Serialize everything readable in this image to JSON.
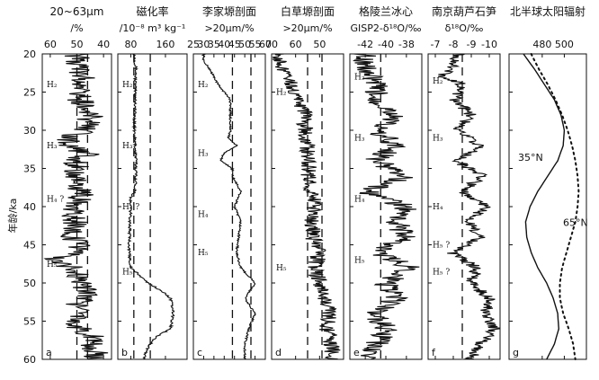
{
  "figure": {
    "y_axis_label": "年龄/ka",
    "y_tick_labels": [
      "20",
      "25",
      "30",
      "35",
      "40",
      "45",
      "50",
      "55",
      "60"
    ]
  },
  "chart_data": [
    {
      "type": "line",
      "panel": "a",
      "title": "20~63μm",
      "subtitle": "/%",
      "x_tick_labels": [
        "60",
        "50",
        "40"
      ],
      "xlim": [
        63,
        37
      ],
      "ylim": [
        20,
        60
      ],
      "series": [
        {
          "age_ka": [
            20,
            22,
            24,
            26,
            28,
            30,
            31,
            32,
            33,
            34,
            36,
            38,
            40,
            42,
            44,
            45,
            46,
            47,
            48,
            49,
            50,
            52,
            53,
            54,
            55,
            56,
            57,
            58,
            59,
            60
          ],
          "percent": [
            50,
            49,
            47,
            49,
            45,
            47,
            53,
            54,
            46,
            50,
            51,
            48,
            51,
            51,
            52,
            48,
            50,
            60,
            52,
            49,
            47,
            46,
            51,
            46,
            52,
            49,
            44,
            44,
            43,
            42
          ]
        }
      ],
      "dashed_lines": [
        50,
        46
      ],
      "annotations": [
        {
          "label": "H₂",
          "age": 24
        },
        {
          "label": "H₃",
          "age": 32
        },
        {
          "label": "H₄ ?",
          "age": 39
        },
        {
          "label": "H₅",
          "age": 47.5
        }
      ]
    },
    {
      "type": "line",
      "panel": "b",
      "title": "磁化率",
      "subtitle": "/10⁻⁸ m³ kg⁻¹",
      "x_tick_labels": [
        "80",
        "160"
      ],
      "xlim": [
        50,
        210
      ],
      "ylim": [
        20,
        60
      ],
      "series": [
        {
          "age_ka": [
            20,
            22,
            24,
            26,
            28,
            30,
            32,
            34,
            36,
            38,
            39,
            40,
            42,
            44,
            46,
            48,
            50,
            51,
            52,
            54,
            56,
            57,
            58,
            59,
            60
          ],
          "susceptibility": [
            88,
            92,
            90,
            91,
            89,
            88,
            90,
            92,
            92,
            90,
            78,
            80,
            78,
            77,
            76,
            80,
            120,
            150,
            172,
            178,
            172,
            140,
            125,
            115,
            110
          ]
        }
      ],
      "dashed_lines": [
        87,
        125
      ],
      "annotations": [
        {
          "label": "H₂",
          "age": 24
        },
        {
          "label": "H₃",
          "age": 32
        },
        {
          "label": "H₄ ?",
          "age": 40
        },
        {
          "label": "H₅",
          "age": 48.5
        }
      ]
    },
    {
      "type": "line",
      "panel": "c",
      "title": "李家塬剖面",
      "subtitle": ">20μm/%",
      "x_tick_labels": [
        "25",
        "30",
        "35",
        "40",
        "45",
        "50",
        "55",
        "60"
      ],
      "xlim": [
        25,
        60
      ],
      "ylim": [
        20,
        60
      ],
      "series": [
        {
          "age_ka": [
            20,
            21,
            22,
            24,
            26,
            28,
            30,
            31,
            32,
            33,
            34,
            35,
            36,
            38,
            40,
            42,
            44,
            46,
            48,
            50,
            52,
            54,
            56,
            58,
            60
          ],
          "percent": [
            30,
            30,
            33,
            37,
            43,
            43,
            43,
            42,
            46,
            40,
            38,
            44,
            44,
            48,
            45,
            48,
            47,
            46,
            48,
            55,
            50,
            55,
            52,
            50,
            50
          ]
        }
      ],
      "dashed_lines": [
        44,
        53
      ],
      "annotations": [
        {
          "label": "H₂",
          "age": 24
        },
        {
          "label": "H₃",
          "age": 33
        },
        {
          "label": "H₄",
          "age": 41
        },
        {
          "label": "H₅",
          "age": 46
        }
      ]
    },
    {
      "type": "line",
      "panel": "d",
      "title": "白草塬剖面",
      "subtitle": ">20μm/%",
      "x_tick_labels": [
        "70",
        "60",
        "50"
      ],
      "xlim": [
        70,
        40
      ],
      "ylim": [
        20,
        60
      ],
      "series": [
        {
          "age_ka": [
            20,
            22,
            24,
            26,
            28,
            30,
            32,
            34,
            36,
            38,
            40,
            42,
            44,
            46,
            48,
            50,
            52,
            54,
            56,
            58,
            60
          ],
          "percent": [
            68,
            65,
            62,
            58,
            56,
            56,
            55,
            54,
            55,
            53,
            52,
            53,
            53,
            50,
            52,
            50,
            48,
            46,
            47,
            45,
            44
          ]
        }
      ],
      "dashed_lines": [
        55,
        49
      ],
      "annotations": [
        {
          "label": "H₂",
          "age": 25
        },
        {
          "label": "H₅",
          "age": 48
        }
      ]
    },
    {
      "type": "line",
      "panel": "e",
      "title": "格陵兰冰心",
      "subtitle": "GISP2-δ¹⁸O/‰",
      "x_tick_labels": [
        "-42",
        "-40",
        "-38"
      ],
      "xlim": [
        -43.5,
        -36.5
      ],
      "ylim": [
        20,
        60
      ],
      "series": [
        {
          "age_ka": [
            20,
            22,
            24,
            26,
            28,
            30,
            32,
            34,
            36,
            38,
            40,
            42,
            44,
            46,
            48,
            50,
            52,
            54,
            56,
            58,
            60
          ],
          "d18O": [
            -42,
            -42,
            -41,
            -41,
            -39,
            -41,
            -39,
            -41,
            -38,
            -42,
            -38,
            -39,
            -38,
            -41,
            -37.5,
            -40,
            -39,
            -41,
            -40,
            -41,
            -42
          ]
        }
      ],
      "dashed_lines": [
        -40.5
      ],
      "annotations": [
        {
          "label": "H₂",
          "age": 23
        },
        {
          "label": "H₃",
          "age": 31
        },
        {
          "label": "H₄",
          "age": 39
        },
        {
          "label": "H₅",
          "age": 47
        }
      ]
    },
    {
      "type": "line",
      "panel": "f",
      "title": "南京葫芦石笋",
      "subtitle": "δ¹⁸O/‰",
      "x_tick_labels": [
        "-7",
        "-8",
        "-9",
        "-10"
      ],
      "xlim": [
        -6.6,
        -10.6
      ],
      "ylim": [
        20,
        60
      ],
      "series": [
        {
          "age_ka": [
            20,
            22,
            23,
            24,
            26,
            28,
            30,
            32,
            34,
            36,
            38,
            40,
            42,
            44,
            46,
            48,
            50,
            52,
            54,
            56,
            58,
            60
          ],
          "d18O": [
            -8.3,
            -7.9,
            -7.2,
            -8.5,
            -8.1,
            -9.0,
            -8.2,
            -9.5,
            -8.2,
            -9.6,
            -8.5,
            -9.8,
            -8.8,
            -9.5,
            -7.9,
            -9.3,
            -9.0,
            -10.0,
            -9.8,
            -10.3,
            -9.5,
            -8.9
          ]
        }
      ],
      "dashed_lines": [
        -8.5
      ],
      "annotations": [
        {
          "label": "H₂",
          "age": 23.5
        },
        {
          "label": "H₃",
          "age": 31
        },
        {
          "label": "H₄",
          "age": 40
        },
        {
          "label": "H₅ ?",
          "age": 45
        },
        {
          "label": "H₅ ?",
          "age": 48.5
        }
      ]
    },
    {
      "type": "line",
      "panel": "g",
      "title": "北半球太阳辐射",
      "subtitle": "",
      "x_tick_labels": [
        "480",
        "500"
      ],
      "xlim": [
        450,
        520
      ],
      "ylim": [
        20,
        60
      ],
      "series": [
        {
          "name": "35°N",
          "age_ka": [
            20,
            22,
            24,
            26,
            28,
            30,
            32,
            34,
            36,
            38,
            40,
            42,
            44,
            46,
            48,
            50,
            52,
            54,
            56,
            58,
            60
          ],
          "insolation": [
            463,
            473,
            482,
            491,
            497,
            500,
            499,
            494,
            485,
            476,
            469,
            465,
            466,
            470,
            476,
            484,
            490,
            494,
            495,
            491,
            484
          ]
        },
        {
          "name": "65°N",
          "age_ka": [
            20,
            22,
            24,
            26,
            28,
            30,
            32,
            34,
            36,
            38,
            40,
            42,
            44,
            46,
            48,
            50,
            52,
            54,
            56,
            58,
            60
          ],
          "insolation": [
            470,
            477,
            485,
            492,
            498,
            503,
            507,
            510,
            512,
            513,
            512,
            510,
            506,
            502,
            498,
            496,
            496,
            499,
            504,
            508,
            510
          ]
        }
      ]
    }
  ]
}
